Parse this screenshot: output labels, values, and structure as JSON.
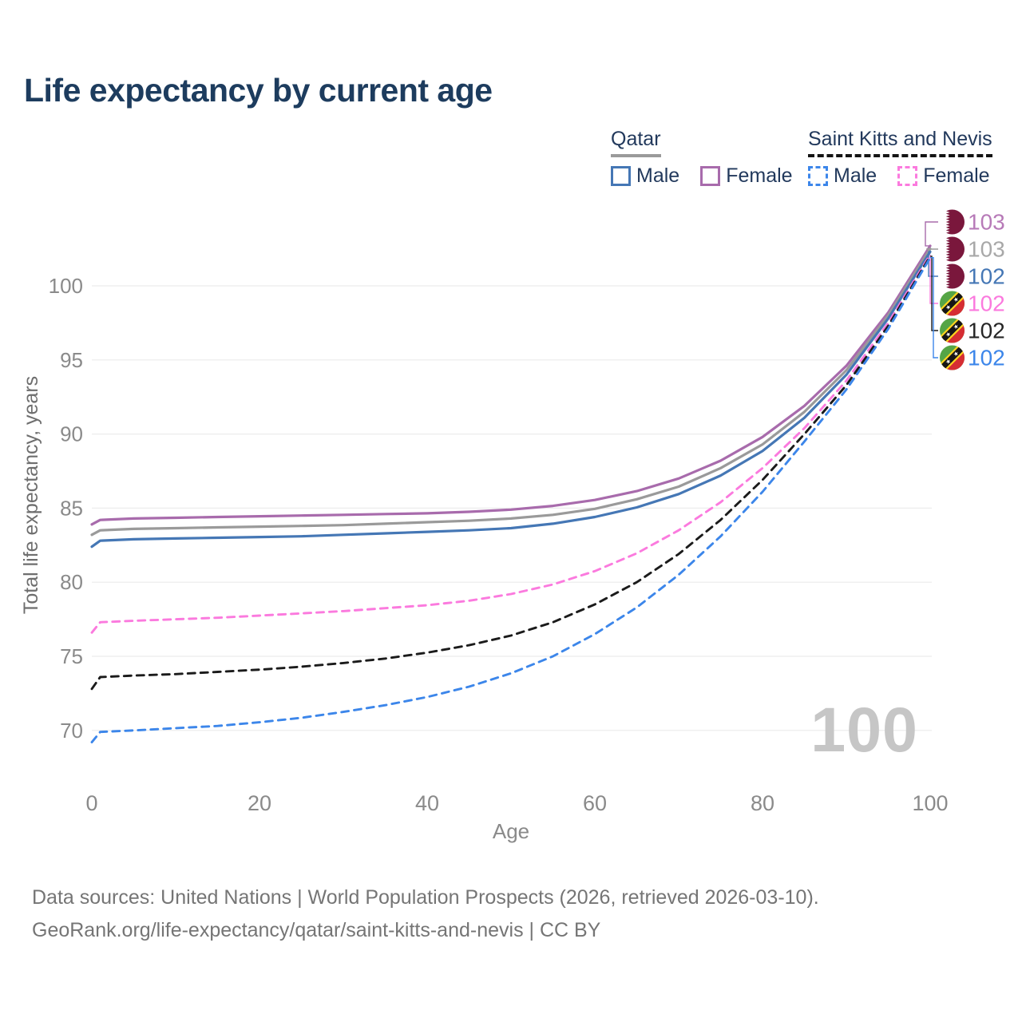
{
  "page": {
    "title": "Life expectancy by current age"
  },
  "legend": {
    "groups": [
      {
        "country": "Qatar",
        "underline_color": "#9a9a9a",
        "underline_style": "solid",
        "items": [
          {
            "label": "Male",
            "color": "#4577b5",
            "dashed": false
          },
          {
            "label": "Female",
            "color": "#a86bac",
            "dashed": false
          }
        ]
      },
      {
        "country": "Saint Kitts and Nevis",
        "underline_color": "#141414",
        "underline_style": "dashed",
        "items": [
          {
            "label": "Male",
            "color": "#3c86ea",
            "dashed": true
          },
          {
            "label": "Female",
            "color": "#fb7ade",
            "dashed": true
          }
        ]
      }
    ]
  },
  "axes": {
    "y_title": "Total life expectancy, years",
    "x_title": "Age"
  },
  "watermark": "100",
  "footer": {
    "line1": "Data sources: United Nations | World Population Prospects (2026, retrieved 2026-03-10).",
    "line2": "GeoRank.org/life-expectancy/qatar/saint-kitts-and-nevis | CC BY"
  },
  "chart_data": {
    "type": "line",
    "title": "Life expectancy by current age",
    "xlabel": "Age",
    "ylabel": "Total life expectancy, years",
    "x_ticks": [
      0,
      20,
      40,
      60,
      80,
      100
    ],
    "y_ticks": [
      70,
      75,
      80,
      85,
      90,
      95,
      100
    ],
    "xlim": [
      0,
      100
    ],
    "ylim": [
      67,
      104
    ],
    "grid": true,
    "legend_position": "top-right",
    "ages": [
      0,
      1,
      5,
      10,
      15,
      20,
      25,
      30,
      35,
      40,
      45,
      50,
      55,
      60,
      65,
      70,
      75,
      80,
      85,
      90,
      95,
      100
    ],
    "series": [
      {
        "name": "Qatar Female",
        "country": "Qatar",
        "sex": "Female",
        "line": "solid",
        "color": "#a86bac",
        "label_color": "#b77ab8",
        "flag": "qatar",
        "end_label": "103",
        "values": [
          83.9,
          84.2,
          84.3,
          84.35,
          84.4,
          84.45,
          84.5,
          84.55,
          84.6,
          84.65,
          84.75,
          84.9,
          85.15,
          85.55,
          86.15,
          87.0,
          88.2,
          89.8,
          91.9,
          94.6,
          98.2,
          102.7
        ]
      },
      {
        "name": "Qatar Both sexes",
        "country": "Qatar",
        "sex": "Both sexes",
        "line": "solid",
        "color": "#9a9a9a",
        "label_color": "#a8a8a8",
        "flag": "qatar",
        "end_label": "103",
        "values": [
          83.2,
          83.5,
          83.6,
          83.65,
          83.7,
          83.75,
          83.8,
          83.85,
          83.95,
          84.05,
          84.15,
          84.3,
          84.55,
          84.95,
          85.6,
          86.45,
          87.7,
          89.3,
          91.5,
          94.3,
          98.0,
          102.5
        ]
      },
      {
        "name": "Qatar Male",
        "country": "Qatar",
        "sex": "Male",
        "line": "solid",
        "color": "#4577b5",
        "label_color": "#4577b5",
        "flag": "qatar",
        "end_label": "102",
        "values": [
          82.4,
          82.8,
          82.9,
          82.95,
          83.0,
          83.05,
          83.1,
          83.2,
          83.3,
          83.4,
          83.5,
          83.65,
          83.95,
          84.4,
          85.05,
          85.95,
          87.2,
          88.85,
          91.1,
          94.0,
          97.8,
          102.3
        ]
      },
      {
        "name": "Saint Kitts and Nevis Female",
        "country": "Saint Kitts and Nevis",
        "sex": "Female",
        "line": "dashed",
        "color": "#fb7ade",
        "label_color": "#fb7ade",
        "flag": "skn",
        "end_label": "102",
        "values": [
          76.6,
          77.3,
          77.4,
          77.5,
          77.6,
          77.75,
          77.9,
          78.05,
          78.25,
          78.45,
          78.75,
          79.2,
          79.85,
          80.75,
          81.95,
          83.5,
          85.4,
          87.7,
          90.4,
          93.6,
          97.5,
          102.1
        ]
      },
      {
        "name": "Saint Kitts and Nevis Both sexes",
        "country": "Saint Kitts and Nevis",
        "sex": "Both sexes",
        "line": "dashed",
        "color": "#1b1b1b",
        "label_color": "#262626",
        "flag": "skn",
        "end_label": "102",
        "values": [
          72.8,
          73.6,
          73.7,
          73.8,
          73.95,
          74.1,
          74.3,
          74.55,
          74.85,
          75.25,
          75.75,
          76.4,
          77.3,
          78.5,
          80.0,
          81.9,
          84.2,
          86.9,
          90.0,
          93.3,
          97.3,
          102.0
        ]
      },
      {
        "name": "Saint Kitts and Nevis Male",
        "country": "Saint Kitts and Nevis",
        "sex": "Male",
        "line": "dashed",
        "color": "#3c86ea",
        "label_color": "#3c86ea",
        "flag": "skn",
        "end_label": "102",
        "values": [
          69.2,
          69.9,
          70.0,
          70.15,
          70.3,
          70.55,
          70.85,
          71.25,
          71.7,
          72.25,
          72.95,
          73.85,
          75.0,
          76.5,
          78.3,
          80.5,
          83.1,
          86.1,
          89.5,
          93.0,
          97.1,
          101.9
        ]
      }
    ]
  }
}
